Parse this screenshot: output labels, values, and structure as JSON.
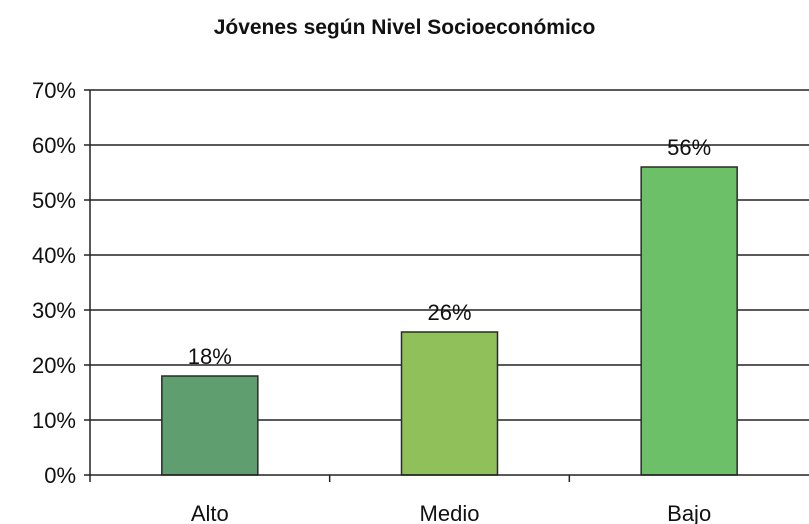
{
  "chart_data": {
    "type": "bar",
    "title": "Jóvenes según Nivel Socioeconómico",
    "categories": [
      "Alto",
      "Medio",
      "Bajo"
    ],
    "values": [
      18,
      26,
      56
    ],
    "data_labels": [
      "18%",
      "26%",
      "56%"
    ],
    "ylim": [
      0,
      70
    ],
    "yticks": [
      0,
      10,
      20,
      30,
      40,
      50,
      60,
      70
    ],
    "ytick_labels": [
      "0%",
      "10%",
      "20%",
      "30%",
      "40%",
      "50%",
      "60%",
      "70%"
    ],
    "xlabel": "",
    "ylabel": "",
    "grid": true,
    "legend": "none",
    "colors": [
      "#5f9f6f",
      "#8fc05a",
      "#6cc067"
    ]
  }
}
